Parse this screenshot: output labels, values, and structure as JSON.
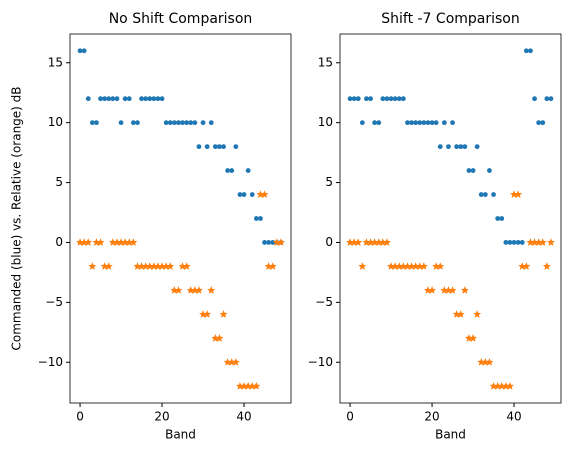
{
  "chart_data": [
    {
      "type": "scatter",
      "title": "No Shift Comparison",
      "x_label": "Band",
      "y_label": "Commanded (blue) vs. Relative (orange) dB",
      "x": [
        0,
        1,
        2,
        3,
        4,
        5,
        6,
        7,
        8,
        9,
        10,
        11,
        12,
        13,
        14,
        15,
        16,
        17,
        18,
        19,
        20,
        21,
        22,
        23,
        24,
        25,
        26,
        27,
        28,
        29,
        30,
        31,
        32,
        33,
        34,
        35,
        36,
        37,
        38,
        39,
        40,
        41,
        42,
        43,
        44,
        45,
        46,
        47,
        48,
        49
      ],
      "series": [
        {
          "color": "#1f77b4",
          "marker": "circle",
          "values": [
            16,
            16,
            12,
            10,
            10,
            12,
            12,
            12,
            12,
            12,
            10,
            12,
            12,
            10,
            10,
            12,
            12,
            12,
            12,
            12,
            12,
            10,
            10,
            10,
            10,
            10,
            10,
            10,
            10,
            8,
            10,
            8,
            10,
            8,
            8,
            8,
            6,
            6,
            8,
            4,
            4,
            6,
            4,
            2,
            2,
            0,
            0,
            0,
            0,
            0
          ]
        },
        {
          "color": "#ff7f0e",
          "marker": "star",
          "values": [
            0,
            0,
            0,
            -2,
            0,
            0,
            -2,
            -2,
            0,
            0,
            0,
            0,
            0,
            0,
            -2,
            -2,
            -2,
            -2,
            -2,
            -2,
            -2,
            -2,
            -2,
            -4,
            -4,
            -2,
            -2,
            -4,
            -4,
            -4,
            -6,
            -6,
            -4,
            -8,
            -8,
            -6,
            -10,
            -10,
            -10,
            -12,
            -12,
            -12,
            -12,
            -12,
            4,
            4,
            -2,
            -2,
            0,
            0
          ]
        }
      ],
      "xlim": [
        -2.45,
        51.45
      ],
      "xticks": [
        0,
        20,
        40
      ],
      "ylim": [
        -13.4,
        17.4
      ],
      "yticks": [
        {
          "value": -10,
          "label": "−10"
        },
        {
          "value": -5,
          "label": "−5"
        },
        0,
        5,
        10,
        15
      ]
    },
    {
      "type": "scatter",
      "title": "Shift -7 Comparison",
      "x_label": "Band",
      "x": [
        0,
        1,
        2,
        3,
        4,
        5,
        6,
        7,
        8,
        9,
        10,
        11,
        12,
        13,
        14,
        15,
        16,
        17,
        18,
        19,
        20,
        21,
        22,
        23,
        24,
        25,
        26,
        27,
        28,
        29,
        30,
        31,
        32,
        33,
        34,
        35,
        36,
        37,
        38,
        39,
        40,
        41,
        42,
        43,
        44,
        45,
        46,
        47,
        48,
        49
      ],
      "series": [
        {
          "color": "#1f77b4",
          "marker": "circle",
          "values": [
            12,
            12,
            12,
            10,
            12,
            12,
            10,
            10,
            12,
            12,
            12,
            12,
            12,
            12,
            10,
            10,
            10,
            10,
            10,
            10,
            10,
            10,
            8,
            10,
            8,
            10,
            8,
            8,
            8,
            6,
            6,
            8,
            4,
            4,
            6,
            4,
            2,
            2,
            0,
            0,
            0,
            0,
            0,
            16,
            16,
            12,
            10,
            10,
            12,
            12
          ]
        },
        {
          "color": "#ff7f0e",
          "marker": "star",
          "values": [
            0,
            0,
            0,
            -2,
            0,
            0,
            0,
            0,
            0,
            0,
            -2,
            -2,
            -2,
            -2,
            -2,
            -2,
            -2,
            -2,
            -2,
            -4,
            -4,
            -2,
            -2,
            -4,
            -4,
            -4,
            -6,
            -6,
            -4,
            -8,
            -8,
            -6,
            -10,
            -10,
            -10,
            -12,
            -12,
            -12,
            -12,
            -12,
            4,
            4,
            -2,
            -2,
            0,
            0,
            0,
            0,
            -2,
            0
          ]
        }
      ],
      "xlim": [
        -2.45,
        51.45
      ],
      "xticks": [
        0,
        20,
        40
      ],
      "ylim": [
        -13.4,
        17.4
      ],
      "yticks": [
        {
          "value": -10,
          "label": "−10"
        },
        {
          "value": -5,
          "label": "−5"
        },
        0,
        5,
        10,
        15
      ]
    }
  ]
}
